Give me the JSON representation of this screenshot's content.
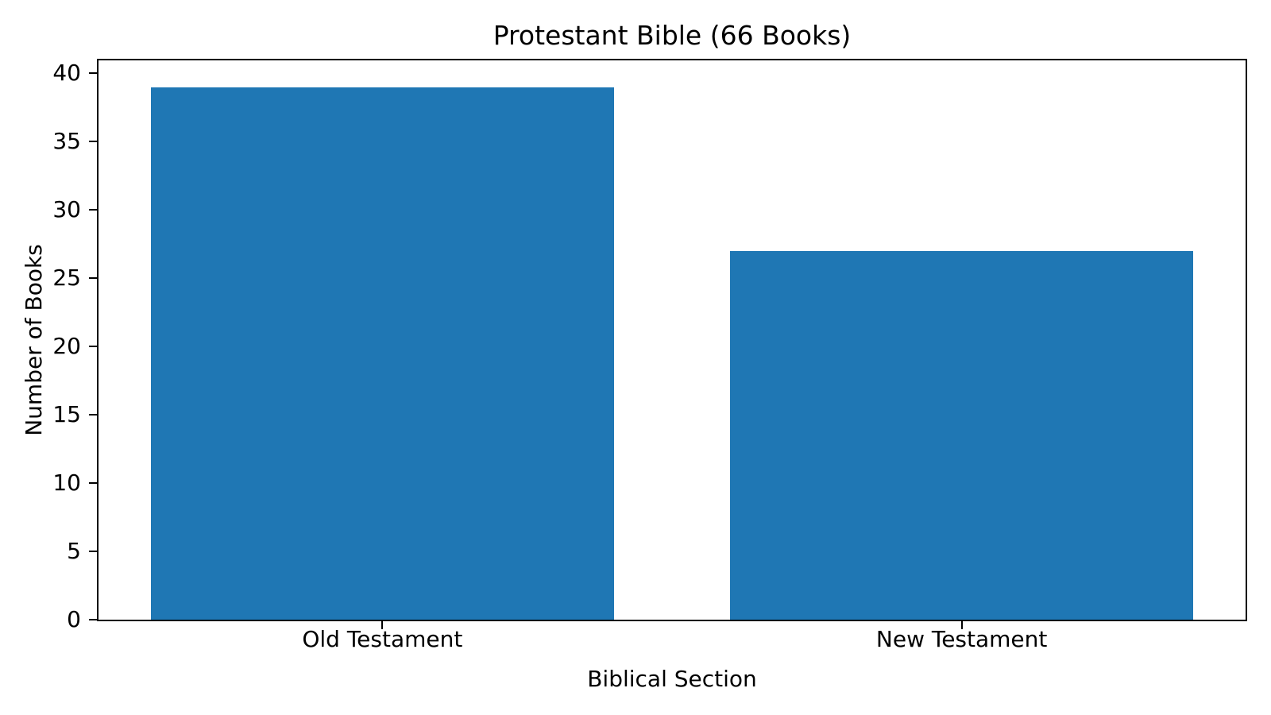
{
  "chart_data": {
    "type": "bar",
    "title": "Protestant Bible (66 Books)",
    "xlabel": "Biblical Section",
    "ylabel": "Number of Books",
    "categories": [
      "Old Testament",
      "New Testament"
    ],
    "values": [
      39,
      27
    ],
    "bar_color": "#1f77b4",
    "text_color": "#000000",
    "ylim": [
      0,
      40.95
    ],
    "yticks": [
      0,
      5,
      10,
      15,
      20,
      25,
      30,
      35,
      40
    ],
    "xlim": [
      -0.49,
      1.49
    ],
    "bar_positions": [
      0,
      1
    ],
    "bar_width": 0.8,
    "grid": false,
    "legend_position": "none"
  }
}
